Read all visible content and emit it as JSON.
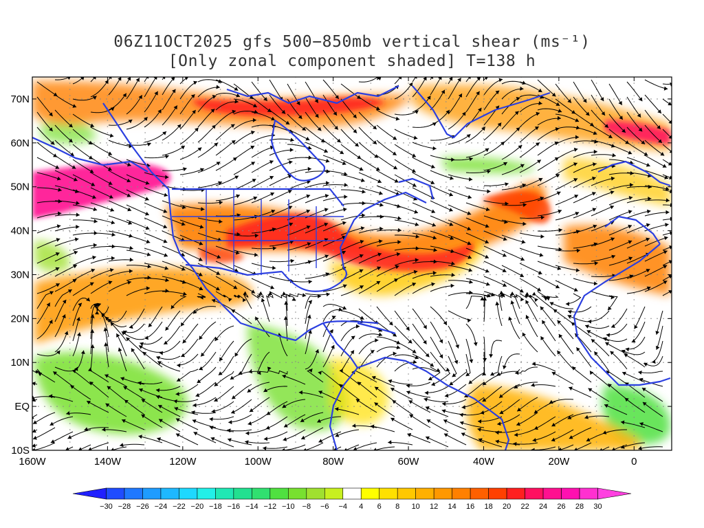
{
  "title": {
    "line1": "06Z11OCT2025 gfs 500−850mb vertical shear (ms⁻¹)",
    "line2": "[Only zonal component shaded] T=138 h"
  },
  "map": {
    "lon_range": [
      -160,
      10
    ],
    "lat_range": [
      -10,
      75
    ],
    "lon_ticks": [
      {
        "value": -160,
        "label": "160W"
      },
      {
        "value": -140,
        "label": "140W"
      },
      {
        "value": -120,
        "label": "120W"
      },
      {
        "value": -100,
        "label": "100W"
      },
      {
        "value": -80,
        "label": "80W"
      },
      {
        "value": -60,
        "label": "60W"
      },
      {
        "value": -40,
        "label": "40W"
      },
      {
        "value": -20,
        "label": "20W"
      },
      {
        "value": 0,
        "label": "0"
      }
    ],
    "lat_ticks": [
      {
        "value": -10,
        "label": "10S"
      },
      {
        "value": 0,
        "label": "EQ"
      },
      {
        "value": 10,
        "label": "10N"
      },
      {
        "value": 20,
        "label": "20N"
      },
      {
        "value": 30,
        "label": "30N"
      },
      {
        "value": 40,
        "label": "40N"
      },
      {
        "value": 50,
        "label": "50N"
      },
      {
        "value": 60,
        "label": "60N"
      },
      {
        "value": 70,
        "label": "70N"
      }
    ],
    "colors": {
      "coastline": "#2b3fe0",
      "streamline": "#000000",
      "grid_dots": "#888888"
    }
  },
  "colorbar": {
    "labels": [
      "-30",
      "-28",
      "-26",
      "-24",
      "-22",
      "-20",
      "-18",
      "-16",
      "-14",
      "-12",
      "-10",
      "-8",
      "-6",
      "-4",
      "4",
      "6",
      "8",
      "10",
      "12",
      "14",
      "16",
      "18",
      "20",
      "22",
      "24",
      "26",
      "28",
      "30"
    ],
    "colors": [
      "#2020ff",
      "#1f4cff",
      "#1f78ff",
      "#1e9cff",
      "#1eb8ff",
      "#1ed8ff",
      "#22f0e8",
      "#20e8b4",
      "#22e090",
      "#30e070",
      "#50e040",
      "#78e030",
      "#a0e030",
      "#c8f020",
      "#ffffff",
      "#ffff00",
      "#ffe000",
      "#ffc800",
      "#ffb000",
      "#ff9800",
      "#ff8000",
      "#ff6000",
      "#ff4000",
      "#ff2020",
      "#ff1060",
      "#ff1090",
      "#ff10b0",
      "#ff30d0",
      "#ff40e0"
    ]
  }
}
